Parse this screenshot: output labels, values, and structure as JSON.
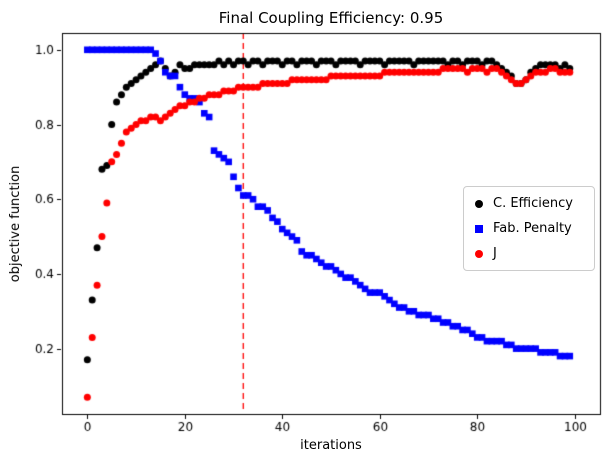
{
  "chart_data": {
    "type": "scatter",
    "title": "Final Coupling Efficiency: 0.95",
    "xlabel": "iterations",
    "ylabel": "objective function",
    "xlim": [
      -5.2,
      105.2
    ],
    "ylim": [
      0.025,
      1.045
    ],
    "xticks": [
      0,
      20,
      40,
      60,
      80,
      100
    ],
    "yticks": [
      0.2,
      0.4,
      0.6,
      0.8,
      1.0
    ],
    "grid": false,
    "legend_position": "center right",
    "vline": {
      "x": 32,
      "color": "#ff0000",
      "style": "dashed"
    },
    "series": [
      {
        "name": "C. Efficiency",
        "color": "#000000",
        "marker": "circle",
        "values": [
          0.17,
          0.33,
          0.47,
          0.68,
          0.69,
          0.8,
          0.86,
          0.88,
          0.9,
          0.91,
          0.92,
          0.93,
          0.94,
          0.95,
          0.96,
          0.97,
          0.95,
          0.93,
          0.94,
          0.96,
          0.95,
          0.95,
          0.96,
          0.96,
          0.96,
          0.96,
          0.96,
          0.97,
          0.96,
          0.97,
          0.96,
          0.97,
          0.97,
          0.96,
          0.97,
          0.97,
          0.96,
          0.97,
          0.97,
          0.97,
          0.96,
          0.97,
          0.97,
          0.96,
          0.97,
          0.97,
          0.97,
          0.96,
          0.97,
          0.97,
          0.97,
          0.96,
          0.97,
          0.97,
          0.97,
          0.97,
          0.96,
          0.97,
          0.97,
          0.97,
          0.97,
          0.96,
          0.97,
          0.97,
          0.97,
          0.97,
          0.97,
          0.96,
          0.97,
          0.97,
          0.97,
          0.97,
          0.97,
          0.97,
          0.96,
          0.97,
          0.97,
          0.96,
          0.97,
          0.97,
          0.97,
          0.96,
          0.97,
          0.97,
          0.96,
          0.95,
          0.94,
          0.93,
          0.91,
          0.91,
          0.92,
          0.94,
          0.95,
          0.96,
          0.96,
          0.96,
          0.96,
          0.95,
          0.96,
          0.95
        ]
      },
      {
        "name": "Fab. Penalty",
        "color": "#0000ff",
        "marker": "square",
        "values": [
          1.0,
          1.0,
          1.0,
          1.0,
          1.0,
          1.0,
          1.0,
          1.0,
          1.0,
          1.0,
          1.0,
          1.0,
          1.0,
          1.0,
          0.99,
          0.97,
          0.94,
          0.93,
          0.93,
          0.9,
          0.88,
          0.87,
          0.87,
          0.86,
          0.83,
          0.82,
          0.73,
          0.72,
          0.71,
          0.7,
          0.66,
          0.63,
          0.61,
          0.61,
          0.6,
          0.58,
          0.58,
          0.57,
          0.55,
          0.54,
          0.52,
          0.51,
          0.5,
          0.49,
          0.46,
          0.45,
          0.45,
          0.44,
          0.43,
          0.42,
          0.42,
          0.41,
          0.4,
          0.39,
          0.39,
          0.38,
          0.37,
          0.36,
          0.35,
          0.35,
          0.35,
          0.34,
          0.33,
          0.32,
          0.31,
          0.31,
          0.3,
          0.3,
          0.29,
          0.29,
          0.29,
          0.28,
          0.28,
          0.27,
          0.27,
          0.26,
          0.26,
          0.25,
          0.25,
          0.24,
          0.23,
          0.23,
          0.22,
          0.22,
          0.22,
          0.22,
          0.21,
          0.21,
          0.2,
          0.2,
          0.2,
          0.2,
          0.2,
          0.19,
          0.19,
          0.19,
          0.19,
          0.18,
          0.18,
          0.18
        ]
      },
      {
        "name": "J",
        "color": "#ff0000",
        "marker": "circle",
        "values": [
          0.07,
          0.23,
          0.37,
          0.5,
          0.59,
          0.7,
          0.72,
          0.75,
          0.78,
          0.79,
          0.8,
          0.81,
          0.81,
          0.82,
          0.82,
          0.81,
          0.82,
          0.83,
          0.84,
          0.85,
          0.85,
          0.86,
          0.86,
          0.87,
          0.87,
          0.88,
          0.88,
          0.88,
          0.89,
          0.89,
          0.89,
          0.9,
          0.9,
          0.9,
          0.9,
          0.9,
          0.91,
          0.91,
          0.91,
          0.91,
          0.91,
          0.91,
          0.92,
          0.92,
          0.92,
          0.92,
          0.92,
          0.92,
          0.92,
          0.92,
          0.93,
          0.93,
          0.93,
          0.93,
          0.93,
          0.93,
          0.93,
          0.93,
          0.93,
          0.93,
          0.93,
          0.94,
          0.94,
          0.94,
          0.94,
          0.94,
          0.94,
          0.94,
          0.94,
          0.94,
          0.94,
          0.94,
          0.94,
          0.95,
          0.95,
          0.95,
          0.95,
          0.95,
          0.94,
          0.95,
          0.95,
          0.95,
          0.94,
          0.95,
          0.95,
          0.94,
          0.93,
          0.92,
          0.91,
          0.91,
          0.92,
          0.93,
          0.94,
          0.94,
          0.94,
          0.95,
          0.95,
          0.94,
          0.94,
          0.94
        ]
      }
    ]
  }
}
